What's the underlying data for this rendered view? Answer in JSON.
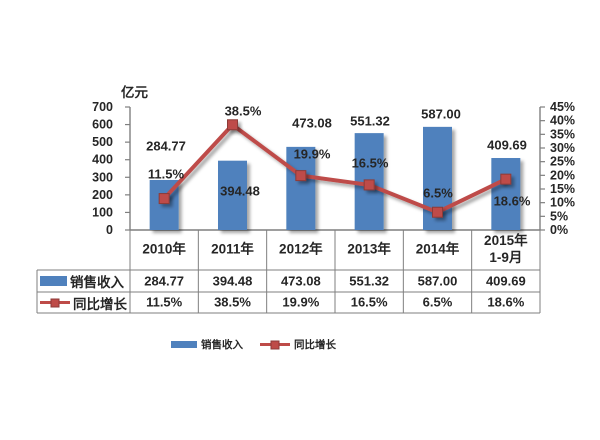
{
  "chart_data": {
    "type": "bar+line",
    "unit_label": "亿元",
    "categories": [
      "2010年",
      "2011年",
      "2012年",
      "2013年",
      "2014年",
      "2015年\n1-9月"
    ],
    "series": [
      {
        "name": "销售收入",
        "type": "bar",
        "axis": "left",
        "color": "#4F81BD",
        "values": [
          284.77,
          394.48,
          473.08,
          551.32,
          587.0,
          409.69
        ],
        "labels": [
          "284.77",
          "394.48",
          "473.08",
          "551.32",
          "587.00",
          "409.69"
        ]
      },
      {
        "name": "同比增长",
        "type": "line",
        "axis": "right",
        "color": "#BE4B48",
        "values": [
          11.5,
          38.5,
          19.9,
          16.5,
          6.5,
          18.6
        ],
        "labels": [
          "11.5%",
          "38.5%",
          "19.9%",
          "16.5%",
          "6.5%",
          "18.6%"
        ]
      }
    ],
    "left_axis": {
      "min": 0,
      "max": 700,
      "step": 100
    },
    "right_axis": {
      "min": 0,
      "max": 45,
      "step": 5,
      "suffix": "%"
    },
    "legend_position": "bottom",
    "gridlines": false,
    "show_data_table": true
  }
}
